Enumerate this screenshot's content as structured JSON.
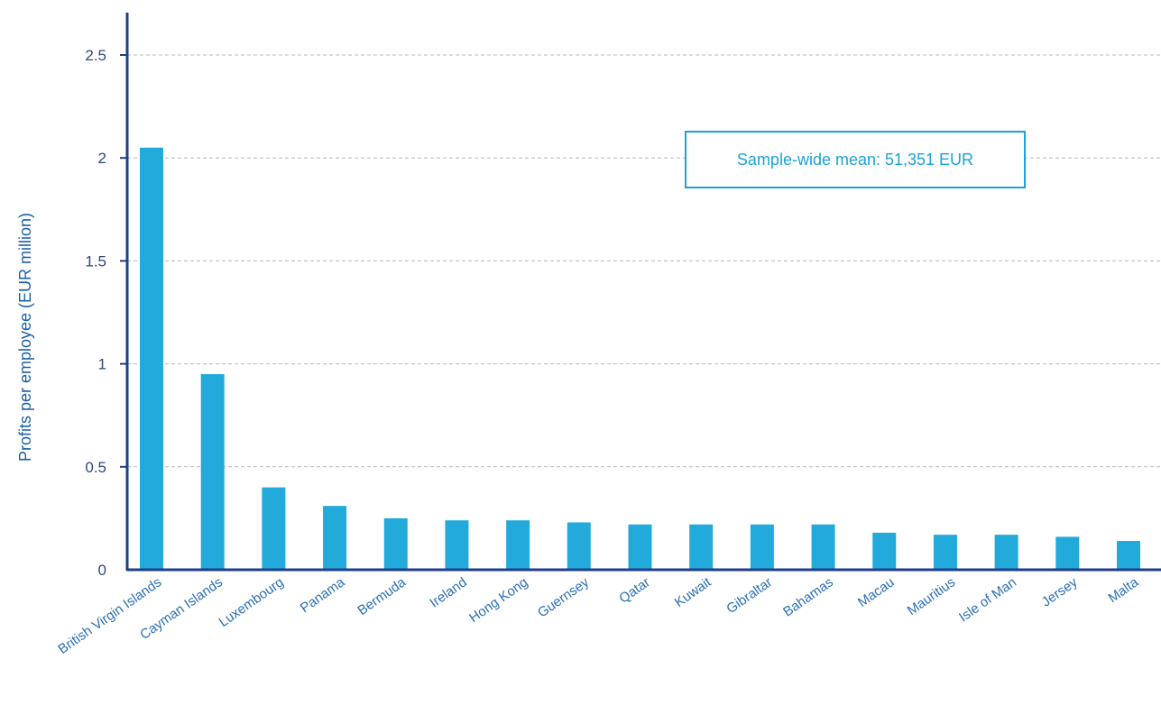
{
  "chart_data": {
    "type": "bar",
    "ylabel": "Profits per employee (EUR million)",
    "ylim": [
      0,
      2.5
    ],
    "yticks": [
      "0",
      "0.5",
      "1",
      "1.5",
      "2",
      "2.5"
    ],
    "grid": true,
    "categories": [
      "British Virgin Islands",
      "Cayman Islands",
      "Luxembourg",
      "Panama",
      "Bermuda",
      "Ireland",
      "Hong Kong",
      "Guernsey",
      "Qatar",
      "Kuwait",
      "Gibraltar",
      "Bahamas",
      "Macau",
      "Mauritius",
      "Isle of Man",
      "Jersey",
      "Malta"
    ],
    "values": [
      2.05,
      0.95,
      0.4,
      0.31,
      0.25,
      0.24,
      0.24,
      0.23,
      0.22,
      0.22,
      0.22,
      0.22,
      0.18,
      0.17,
      0.17,
      0.16,
      0.14
    ],
    "annotation": "Sample-wide mean: 51,351 EUR",
    "colors": {
      "bar": "#22aadb",
      "axis": "#1f3f87",
      "grid": "#b9b9b9",
      "annotation": "#1aa3d9"
    }
  }
}
